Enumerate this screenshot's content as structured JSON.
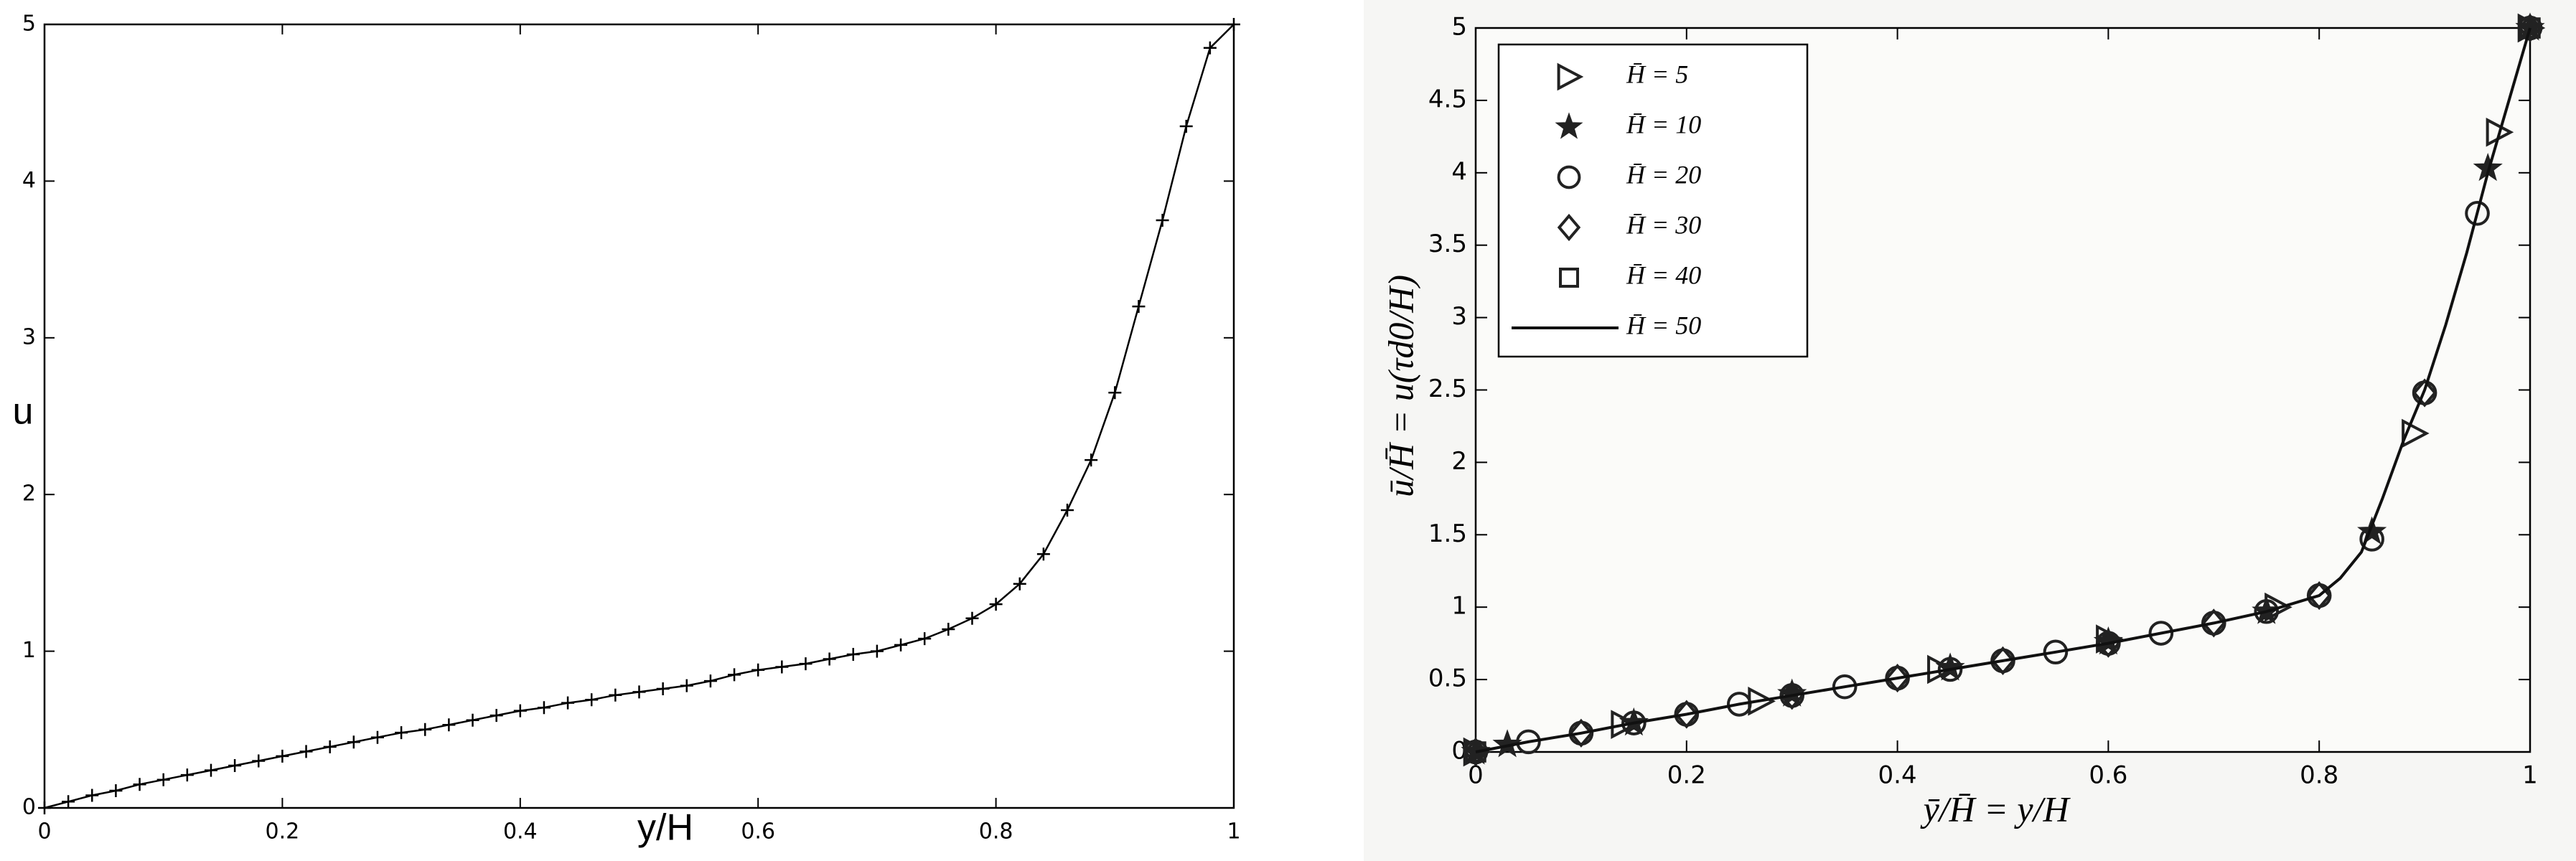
{
  "chart_data": [
    {
      "type": "line",
      "xlabel": "y/H",
      "ylabel": "u",
      "xlim": [
        0,
        1
      ],
      "ylim": [
        0,
        5
      ],
      "xticks": [
        0,
        0.2,
        0.4,
        0.6,
        0.8,
        1
      ],
      "yticks": [
        0,
        1,
        2,
        3,
        4,
        5
      ],
      "series": [
        {
          "color": "#000000",
          "style": "line-markers",
          "marker": "plus",
          "x": [
            0,
            0.02,
            0.04,
            0.06,
            0.08,
            0.1,
            0.12,
            0.14,
            0.16,
            0.18,
            0.2,
            0.22,
            0.24,
            0.26,
            0.28,
            0.3,
            0.32,
            0.34,
            0.36,
            0.38,
            0.4,
            0.42,
            0.44,
            0.46,
            0.48,
            0.5,
            0.52,
            0.54,
            0.56,
            0.58,
            0.6,
            0.62,
            0.64,
            0.66,
            0.68,
            0.7,
            0.72,
            0.74,
            0.76,
            0.78,
            0.8,
            0.82,
            0.84,
            0.86,
            0.88,
            0.9,
            0.92,
            0.94,
            0.96,
            0.98,
            1
          ],
          "values": [
            0,
            0.04,
            0.08,
            0.11,
            0.15,
            0.18,
            0.21,
            0.24,
            0.27,
            0.3,
            0.33,
            0.36,
            0.39,
            0.42,
            0.45,
            0.48,
            0.5,
            0.53,
            0.56,
            0.59,
            0.62,
            0.64,
            0.67,
            0.69,
            0.72,
            0.74,
            0.76,
            0.78,
            0.81,
            0.85,
            0.88,
            0.9,
            0.92,
            0.95,
            0.98,
            1.0,
            1.04,
            1.08,
            1.14,
            1.21,
            1.3,
            1.43,
            1.62,
            1.9,
            2.22,
            2.65,
            3.2,
            3.75,
            4.35,
            4.85,
            5
          ]
        }
      ]
    },
    {
      "type": "line",
      "xlabel": "ȳ/H̄ = y/H",
      "ylabel": "ū/H̄ = u(τd0/H)",
      "xlim": [
        0,
        1
      ],
      "ylim": [
        0,
        5
      ],
      "xticks": [
        0,
        0.2,
        0.4,
        0.6,
        0.8,
        1
      ],
      "yticks": [
        0,
        0.5,
        1,
        1.5,
        2,
        2.5,
        3,
        3.5,
        4,
        4.5,
        5
      ],
      "legend": "upper left",
      "series": [
        {
          "name": "H̄ = 5",
          "color": "#222222",
          "style": "markers",
          "marker": "triangle-right",
          "x": [
            0,
            0.14,
            0.27,
            0.44,
            0.6,
            0.76,
            0.89,
            0.97,
            1
          ],
          "values": [
            0,
            0.19,
            0.35,
            0.57,
            0.78,
            1.0,
            2.2,
            4.28,
            5
          ]
        },
        {
          "name": "H̄ = 10",
          "color": "#222222",
          "style": "markers",
          "marker": "star",
          "x": [
            0,
            0.03,
            0.15,
            0.3,
            0.45,
            0.6,
            0.75,
            0.85,
            0.96,
            1
          ],
          "values": [
            0,
            0.05,
            0.2,
            0.4,
            0.58,
            0.76,
            0.97,
            1.52,
            4.03,
            5
          ]
        },
        {
          "name": "H̄ = 20",
          "color": "#222222",
          "style": "markers",
          "marker": "circle",
          "x": [
            0,
            0.05,
            0.1,
            0.15,
            0.2,
            0.25,
            0.3,
            0.35,
            0.4,
            0.45,
            0.5,
            0.55,
            0.6,
            0.65,
            0.7,
            0.75,
            0.8,
            0.85,
            0.9,
            0.95,
            1
          ],
          "values": [
            0,
            0.07,
            0.13,
            0.2,
            0.26,
            0.33,
            0.39,
            0.45,
            0.51,
            0.57,
            0.63,
            0.69,
            0.75,
            0.82,
            0.89,
            0.97,
            1.08,
            1.47,
            2.48,
            3.72,
            5
          ]
        },
        {
          "name": "H̄ = 30",
          "color": "#222222",
          "style": "markers",
          "marker": "diamond",
          "x": [
            0,
            0.1,
            0.2,
            0.3,
            0.4,
            0.5,
            0.6,
            0.7,
            0.8,
            0.9,
            1
          ],
          "values": [
            0,
            0.13,
            0.26,
            0.39,
            0.51,
            0.63,
            0.75,
            0.89,
            1.08,
            2.48,
            5
          ]
        },
        {
          "name": "H̄ = 40",
          "color": "#222222",
          "style": "markers",
          "marker": "square",
          "x": [
            0,
            1
          ],
          "values": [
            0,
            5
          ]
        },
        {
          "name": "H̄ = 50",
          "color": "#111111",
          "style": "line",
          "x": [
            0,
            0.05,
            0.1,
            0.15,
            0.2,
            0.25,
            0.3,
            0.35,
            0.4,
            0.45,
            0.5,
            0.55,
            0.6,
            0.65,
            0.7,
            0.75,
            0.8,
            0.82,
            0.84,
            0.86,
            0.88,
            0.9,
            0.92,
            0.94,
            0.96,
            0.98,
            1
          ],
          "values": [
            0,
            0.07,
            0.13,
            0.2,
            0.26,
            0.33,
            0.39,
            0.45,
            0.51,
            0.57,
            0.63,
            0.69,
            0.75,
            0.82,
            0.89,
            0.97,
            1.08,
            1.2,
            1.38,
            1.75,
            2.15,
            2.5,
            2.95,
            3.45,
            4.0,
            4.5,
            5
          ]
        }
      ]
    }
  ]
}
